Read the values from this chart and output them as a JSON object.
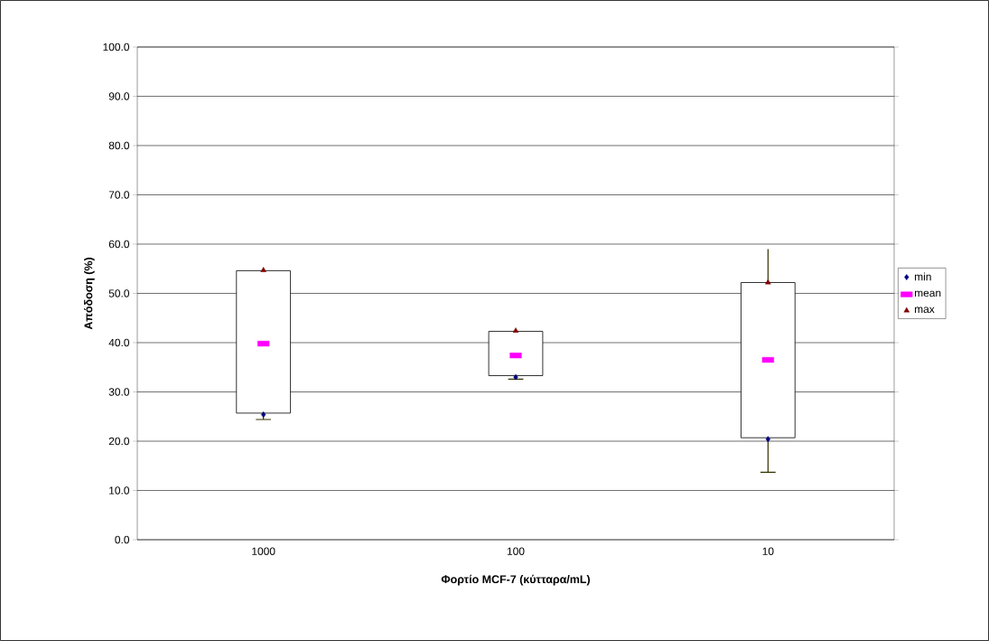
{
  "chart_data": {
    "type": "candlestick",
    "xlabel": "Φορτίο MCF-7 (κύτταρα/mL)",
    "ylabel": "Απόδοση (%)",
    "categories": [
      "1000",
      "100",
      "10"
    ],
    "ohlc": [
      [
        25.7,
        54.6,
        24.4,
        54.6
      ],
      [
        33.3,
        42.3,
        32.6,
        42.3
      ],
      [
        20.7,
        59.0,
        13.7,
        52.2
      ]
    ],
    "series": [
      {
        "name": "min",
        "type": "scatter",
        "marker": "diamond",
        "color": "#000080",
        "values": [
          25.4,
          33.0,
          20.4
        ]
      },
      {
        "name": "mean",
        "type": "scatter",
        "marker": "square",
        "color": "#ff00ff",
        "values": [
          39.8,
          37.4,
          36.5
        ]
      },
      {
        "name": "max",
        "type": "scatter",
        "marker": "triangle",
        "color": "#800000",
        "values": [
          54.7,
          42.4,
          52.2
        ]
      }
    ],
    "ylim": [
      0,
      100
    ],
    "yticks": [
      {
        "value": 0,
        "label": "0.0"
      },
      {
        "value": 10,
        "label": "10.0"
      },
      {
        "value": 20,
        "label": "20.0"
      },
      {
        "value": 30,
        "label": "30.0"
      },
      {
        "value": 40,
        "label": "40.0"
      },
      {
        "value": 50,
        "label": "50.0"
      },
      {
        "value": 60,
        "label": "60.0"
      },
      {
        "value": 70,
        "label": "70.0"
      },
      {
        "value": 80,
        "label": "80.0"
      },
      {
        "value": 90,
        "label": "90.0"
      },
      {
        "value": 100,
        "label": "100.0"
      }
    ],
    "grid": "y",
    "legend": "right"
  }
}
